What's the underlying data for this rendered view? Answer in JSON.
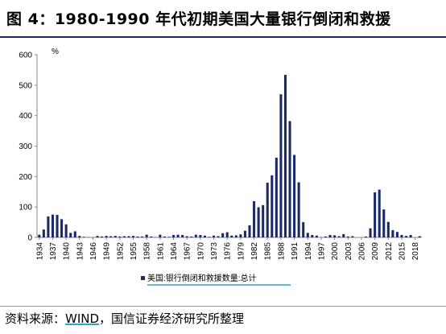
{
  "title": "图 4：1980-1990 年代初期美国大量银行倒闭和救援",
  "source": {
    "prefix": "资料来源：",
    "wind": "WIND",
    "suffix": "，国信证券经济研究所整理"
  },
  "colors": {
    "bar": "#1b2a66",
    "title_rule": "#1a2a6c",
    "legend_underline": "#2aa6c9"
  },
  "chart_data": {
    "type": "bar",
    "ylabel": "%",
    "ylim": [
      0,
      600
    ],
    "yticks": [
      0,
      100,
      200,
      300,
      400,
      500,
      600
    ],
    "grid": false,
    "legend_position": "bottom",
    "xtick_labels": [
      "1934",
      "1937",
      "1940",
      "1943",
      "1946",
      "1949",
      "1952",
      "1955",
      "1958",
      "1961",
      "1964",
      "1967",
      "1970",
      "1973",
      "1976",
      "1979",
      "1982",
      "1985",
      "1988",
      "1991",
      "1994",
      "1997",
      "2000",
      "2003",
      "2006",
      "2009",
      "2012",
      "2015",
      "2018"
    ],
    "series": [
      {
        "name": "美国:银行倒闭和救援数量:总计",
        "x": [
          1934,
          1935,
          1936,
          1937,
          1938,
          1939,
          1940,
          1941,
          1942,
          1943,
          1944,
          1945,
          1946,
          1947,
          1948,
          1949,
          1950,
          1951,
          1952,
          1953,
          1954,
          1955,
          1956,
          1957,
          1958,
          1959,
          1960,
          1961,
          1962,
          1963,
          1964,
          1965,
          1966,
          1967,
          1968,
          1969,
          1970,
          1971,
          1972,
          1973,
          1974,
          1975,
          1976,
          1977,
          1978,
          1979,
          1980,
          1981,
          1982,
          1983,
          1984,
          1985,
          1986,
          1987,
          1988,
          1989,
          1990,
          1991,
          1992,
          1993,
          1994,
          1995,
          1996,
          1997,
          1998,
          1999,
          2000,
          2001,
          2002,
          2003,
          2004,
          2005,
          2006,
          2007,
          2008,
          2009,
          2010,
          2011,
          2012,
          2013,
          2014,
          2015,
          2016,
          2017,
          2018,
          2019
        ],
        "values": [
          9,
          26,
          69,
          75,
          74,
          60,
          43,
          15,
          20,
          5,
          2,
          1,
          1,
          5,
          3,
          5,
          4,
          5,
          3,
          4,
          4,
          5,
          3,
          3,
          9,
          3,
          1,
          9,
          3,
          2,
          8,
          9,
          8,
          4,
          3,
          9,
          8,
          6,
          2,
          6,
          4,
          14,
          17,
          6,
          7,
          10,
          22,
          40,
          119,
          99,
          106,
          180,
          204,
          262,
          470,
          534,
          382,
          271,
          181,
          50,
          15,
          8,
          6,
          1,
          3,
          8,
          7,
          4,
          11,
          3,
          4,
          0,
          0,
          3,
          30,
          148,
          157,
          92,
          51,
          24,
          18,
          8,
          5,
          8,
          0,
          4
        ]
      }
    ]
  }
}
